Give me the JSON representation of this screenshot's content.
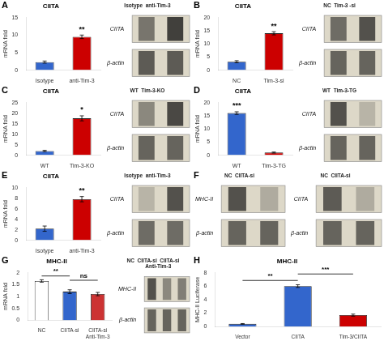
{
  "chart_data": [
    {
      "type": "bar",
      "title": "CIITA",
      "categories": [
        "Isotype",
        "anti-Tim-3"
      ],
      "values": [
        2.3,
        9.5
      ],
      "errors": [
        0.3,
        0.5
      ],
      "colors": [
        "#3366cc",
        "#cc0000"
      ],
      "ylim": [
        0,
        15
      ],
      "yticks": [
        0,
        5,
        10,
        15
      ],
      "ylabel": "mRNA fold",
      "grid": false,
      "annotations": [
        {
          "text": "A"
        },
        {
          "text": "**",
          "over": [
            "anti-Tim-3"
          ]
        }
      ]
    },
    {
      "type": "heatmap",
      "title": "Isotype  anti-Tim-3",
      "rows": [
        "CIITA",
        "β-actin"
      ],
      "cells": [
        [
          0.55,
          0.85
        ],
        [
          0.7,
          0.7
        ]
      ]
    },
    {
      "type": "bar",
      "title": "CIITA",
      "categories": [
        "NC",
        "Tim-3-si"
      ],
      "values": [
        3.2,
        14.0
      ],
      "errors": [
        0.4,
        0.6
      ],
      "colors": [
        "#3366cc",
        "#cc0000"
      ],
      "ylim": [
        0,
        20
      ],
      "yticks": [
        0,
        5,
        10,
        15,
        20
      ],
      "ylabel": "mRNA fold",
      "grid": false,
      "annotations": [
        {
          "text": "B"
        },
        {
          "text": "**",
          "over": [
            "Tim-3-si"
          ]
        }
      ]
    },
    {
      "type": "heatmap",
      "title": "NC  Tim-3 -si",
      "rows": [
        "CIITA",
        "β-actin"
      ],
      "cells": [
        [
          0.6,
          0.75
        ],
        [
          0.65,
          0.65
        ]
      ]
    },
    {
      "type": "bar",
      "title": "CIITA",
      "categories": [
        "WT",
        "Tim-3-KO"
      ],
      "values": [
        2.0,
        17.5
      ],
      "errors": [
        0.3,
        1.2
      ],
      "colors": [
        "#3366cc",
        "#cc0000"
      ],
      "ylim": [
        0,
        25
      ],
      "yticks": [
        0,
        5,
        10,
        15,
        20,
        25
      ],
      "ylabel": "mRNA fold",
      "grid": false,
      "annotations": [
        {
          "text": "C"
        },
        {
          "text": "*",
          "over": [
            "Tim-3-KO"
          ]
        }
      ]
    },
    {
      "type": "heatmap",
      "title": "WT  Tim-3-KO",
      "rows": [
        "CIITA",
        "β-actin"
      ],
      "cells": [
        [
          0.45,
          0.8
        ],
        [
          0.65,
          0.65
        ]
      ]
    },
    {
      "type": "bar",
      "title": "CIITA",
      "categories": [
        "WT",
        "Tim-3-TG"
      ],
      "values": [
        16.0,
        1.0
      ],
      "errors": [
        0.5,
        0.2
      ],
      "colors": [
        "#3366cc",
        "#cc0000"
      ],
      "ylim": [
        0,
        20
      ],
      "yticks": [
        0,
        5,
        10,
        15,
        20
      ],
      "ylabel": "mRNA fold",
      "grid": false,
      "annotations": [
        {
          "text": "D"
        },
        {
          "text": "***",
          "over": [
            "WT"
          ]
        }
      ]
    },
    {
      "type": "heatmap",
      "title": "WT  Tim-3-TG",
      "rows": [
        "CIITA",
        "β-actin"
      ],
      "cells": [
        [
          0.75,
          0.2
        ],
        [
          0.65,
          0.65
        ]
      ]
    },
    {
      "type": "bar",
      "title": "CIITA",
      "categories": [
        "Isotype",
        "anti-Tim-3"
      ],
      "values": [
        2.2,
        7.8
      ],
      "errors": [
        0.5,
        0.5
      ],
      "colors": [
        "#3366cc",
        "#cc0000"
      ],
      "ylim": [
        0,
        10
      ],
      "yticks": [
        0,
        2,
        4,
        6,
        8,
        10
      ],
      "ylabel": "mRNA fold",
      "grid": false,
      "annotations": [
        {
          "text": "E"
        },
        {
          "text": "**",
          "over": [
            "anti-Tim-3"
          ]
        }
      ]
    },
    {
      "type": "heatmap",
      "title": "Isotype  anti-Tim-3",
      "rows": [
        "CIITA",
        "β-actin"
      ],
      "cells": [
        [
          0.2,
          0.75
        ],
        [
          0.6,
          0.6
        ]
      ]
    },
    {
      "type": "heatmap",
      "title": "NC  CIITA-si",
      "rows": [
        "MHC-II",
        "β-actin"
      ],
      "cells": [
        [
          0.75,
          0.25
        ],
        [
          0.65,
          0.65
        ]
      ],
      "annotations": [
        {
          "text": "F"
        }
      ]
    },
    {
      "type": "heatmap",
      "title": "NC  CIITA-si",
      "rows": [
        "CIITA",
        "β-actin"
      ],
      "cells": [
        [
          0.7,
          0.25
        ],
        [
          0.65,
          0.65
        ]
      ]
    },
    {
      "type": "bar",
      "title": "MHC-II",
      "categories": [
        "NC",
        "CIITA-si",
        "CIITA-si\nAnti-Tim-3"
      ],
      "values": [
        1.65,
        1.2,
        1.1
      ],
      "errors": [
        0.05,
        0.08,
        0.07
      ],
      "colors": [
        "#ffffff",
        "#3366cc",
        "#cc3333"
      ],
      "ylim": [
        0,
        2
      ],
      "yticks": [
        0,
        0.5,
        1,
        1.5,
        2
      ],
      "ylabel": "mRNA fold",
      "grid": false,
      "annotations": [
        {
          "text": "G"
        },
        {
          "text": "**",
          "over": [
            "NC",
            "CIITA-si"
          ]
        },
        {
          "text": "ns",
          "over": [
            "CIITA-si",
            "CIITA-si\nAnti-Tim-3"
          ]
        }
      ]
    },
    {
      "type": "heatmap",
      "title": "NC  CIITA-si  CIITA-si\n       Anti-Tim-3",
      "rows": [
        "MHC-II",
        "β-actin"
      ],
      "cells": [
        [
          0.75,
          0.45,
          0.5
        ],
        [
          0.65,
          0.65,
          0.65
        ]
      ]
    },
    {
      "type": "bar",
      "title": "MHC-II",
      "categories": [
        "Vector",
        "CIITA",
        "Tim-3/CIITA"
      ],
      "values": [
        0.4,
        6.0,
        1.7
      ],
      "errors": [
        0.05,
        0.2,
        0.15
      ],
      "colors": [
        "#3366cc",
        "#3366cc",
        "#cc0000"
      ],
      "ylim": [
        0,
        8
      ],
      "yticks": [
        0,
        2,
        4,
        6,
        8
      ],
      "ylabel": "MHC-II Luciferase",
      "grid": false,
      "annotations": [
        {
          "text": "H"
        },
        {
          "text": "**",
          "over": [
            "Vector",
            "CIITA"
          ]
        },
        {
          "text": "***",
          "over": [
            "CIITA",
            "Tim-3/CIITA"
          ]
        }
      ]
    }
  ]
}
